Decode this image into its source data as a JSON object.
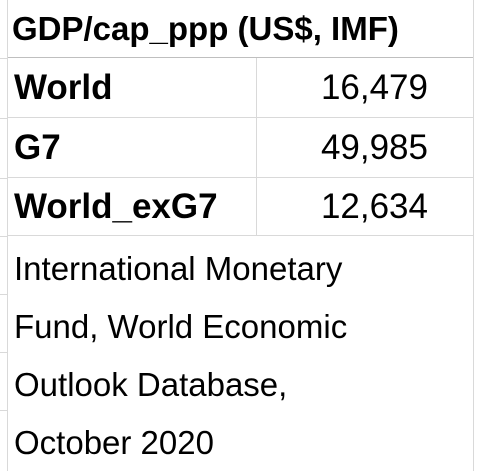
{
  "table": {
    "header": "GDP/cap_ppp (US$, IMF)",
    "rows": [
      {
        "label": "World",
        "value": "16,479"
      },
      {
        "label": "G7",
        "value": "49,985"
      },
      {
        "label": "World_exG7",
        "value": "12,634"
      }
    ],
    "source_lines": [
      "International Monetary",
      "Fund, World Economic",
      "Outlook Database,",
      "October 2020"
    ]
  }
}
